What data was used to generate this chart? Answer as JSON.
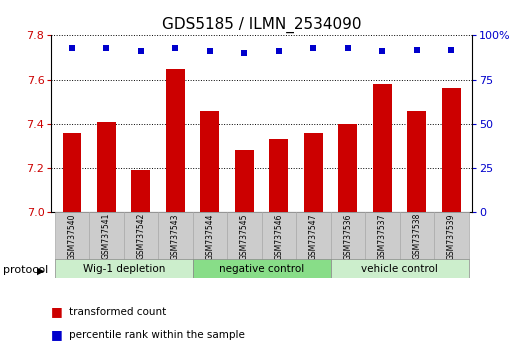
{
  "title": "GDS5185 / ILMN_2534090",
  "samples": [
    "GSM737540",
    "GSM737541",
    "GSM737542",
    "GSM737543",
    "GSM737544",
    "GSM737545",
    "GSM737546",
    "GSM737547",
    "GSM737536",
    "GSM737537",
    "GSM737538",
    "GSM737539"
  ],
  "bar_values": [
    7.36,
    7.41,
    7.19,
    7.65,
    7.46,
    7.28,
    7.33,
    7.36,
    7.4,
    7.58,
    7.46,
    7.56
  ],
  "percentile_ranks": [
    93,
    93,
    91,
    93,
    91,
    90,
    91,
    93,
    93,
    91,
    92,
    92
  ],
  "ylim_left": [
    7.0,
    7.8
  ],
  "ylim_right": [
    0,
    100
  ],
  "yticks_left": [
    7.0,
    7.2,
    7.4,
    7.6,
    7.8
  ],
  "yticks_right": [
    0,
    25,
    50,
    75,
    100
  ],
  "groups": [
    {
      "label": "Wig-1 depletion",
      "start": 0,
      "end": 4,
      "color": "#cceecc"
    },
    {
      "label": "negative control",
      "start": 4,
      "end": 8,
      "color": "#88dd88"
    },
    {
      "label": "vehicle control",
      "start": 8,
      "end": 12,
      "color": "#cceecc"
    }
  ],
  "bar_color": "#cc0000",
  "dot_color": "#0000cc",
  "title_fontsize": 11,
  "axis_label_color_left": "#cc0000",
  "axis_label_color_right": "#0000cc",
  "legend_items": [
    {
      "color": "#cc0000",
      "label": "transformed count"
    },
    {
      "color": "#0000cc",
      "label": "percentile rank within the sample"
    }
  ],
  "protocol_label": "protocol",
  "sample_box_color": "#cccccc",
  "sample_box_edge_color": "#aaaaaa"
}
